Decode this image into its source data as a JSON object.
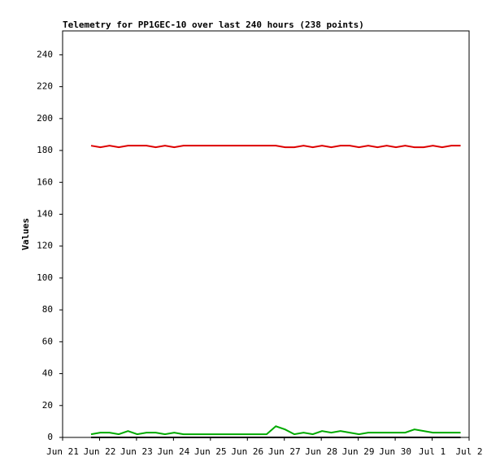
{
  "chart_data": {
    "type": "line",
    "title": "Telemetry for PP1GEC-10 over last 240 hours (238 points)",
    "y_label": "Values",
    "x": [
      0.77,
      1.02,
      1.27,
      1.52,
      1.77,
      2.02,
      2.27,
      2.52,
      2.77,
      3.02,
      3.27,
      3.52,
      3.77,
      4.02,
      4.27,
      4.52,
      4.77,
      5.02,
      5.27,
      5.52,
      5.77,
      6.02,
      6.27,
      6.52,
      6.77,
      7.02,
      7.27,
      7.52,
      7.77,
      8.02,
      8.27,
      8.52,
      8.77,
      9.02,
      9.27,
      9.52,
      9.77,
      10.02,
      10.27,
      10.52,
      10.77
    ],
    "series": [
      {
        "color": "#dd0000",
        "values": [
          183,
          182,
          183,
          182,
          183,
          183,
          183,
          182,
          183,
          182,
          183,
          183,
          183,
          183,
          183,
          183,
          183,
          183,
          183,
          183,
          183,
          182,
          182,
          183,
          182,
          183,
          182,
          183,
          183,
          182,
          183,
          182,
          183,
          182,
          183,
          182,
          182,
          183,
          182,
          183,
          183
        ]
      },
      {
        "color": "#00aa00",
        "values": [
          2,
          3,
          3,
          2,
          4,
          2,
          3,
          3,
          2,
          3,
          2,
          2,
          2,
          2,
          2,
          2,
          2,
          2,
          2,
          2,
          7,
          5,
          2,
          3,
          2,
          4,
          3,
          4,
          3,
          2,
          3,
          3,
          3,
          3,
          3,
          5,
          4,
          3,
          3,
          3,
          3
        ]
      },
      {
        "color": "#000000",
        "values": [
          0,
          0,
          0,
          0,
          0,
          0,
          0,
          0,
          0,
          0,
          0,
          0,
          0,
          0,
          0,
          0,
          0,
          0,
          0,
          0,
          0,
          0,
          0,
          0,
          0,
          0,
          0,
          0,
          0,
          0,
          0,
          0,
          0,
          0,
          0,
          0,
          0,
          0,
          0,
          0,
          0
        ]
      }
    ],
    "xlim": [
      0,
      11
    ],
    "xticks": [
      {
        "value": 0,
        "label": "Jun 21"
      },
      {
        "value": 1,
        "label": "Jun 22"
      },
      {
        "value": 2,
        "label": "Jun 23"
      },
      {
        "value": 3,
        "label": "Jun 24"
      },
      {
        "value": 4,
        "label": "Jun 25"
      },
      {
        "value": 5,
        "label": "Jun 26"
      },
      {
        "value": 6,
        "label": "Jun 27"
      },
      {
        "value": 7,
        "label": "Jun 28"
      },
      {
        "value": 8,
        "label": "Jun 29"
      },
      {
        "value": 9,
        "label": "Jun 30"
      },
      {
        "value": 10,
        "label": "Jul 1"
      },
      {
        "value": 11,
        "label": "Jul 2"
      }
    ],
    "ylim": [
      0,
      255
    ],
    "yticks": [
      0,
      20,
      40,
      60,
      80,
      100,
      120,
      140,
      160,
      180,
      200,
      220,
      240
    ],
    "grid": false
  }
}
